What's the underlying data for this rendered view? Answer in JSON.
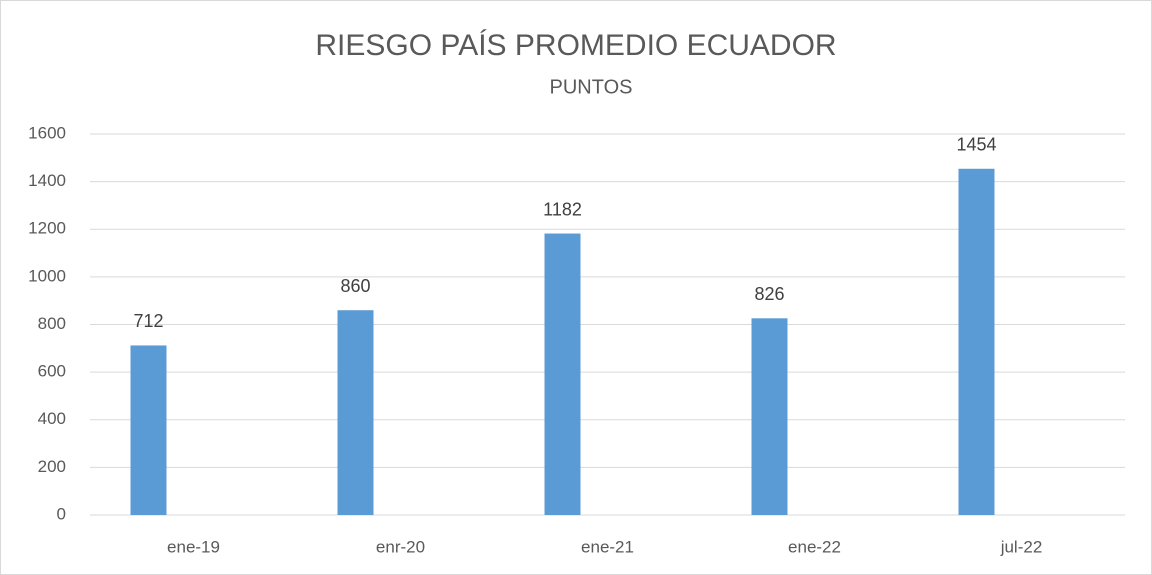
{
  "chart_data": {
    "type": "bar",
    "title": "RIESGO PAÍS PROMEDIO ECUADOR",
    "subtitle": "PUNTOS",
    "categories": [
      "ene-19",
      "enr-20",
      "ene-21",
      "ene-22",
      "jul-22"
    ],
    "values": [
      712,
      860,
      1182,
      826,
      1454
    ],
    "color": "#5b9bd5",
    "ylim": [
      0,
      1600
    ],
    "yticks": [
      0,
      200,
      400,
      600,
      800,
      1000,
      1200,
      1400,
      1600
    ],
    "grid": true
  }
}
